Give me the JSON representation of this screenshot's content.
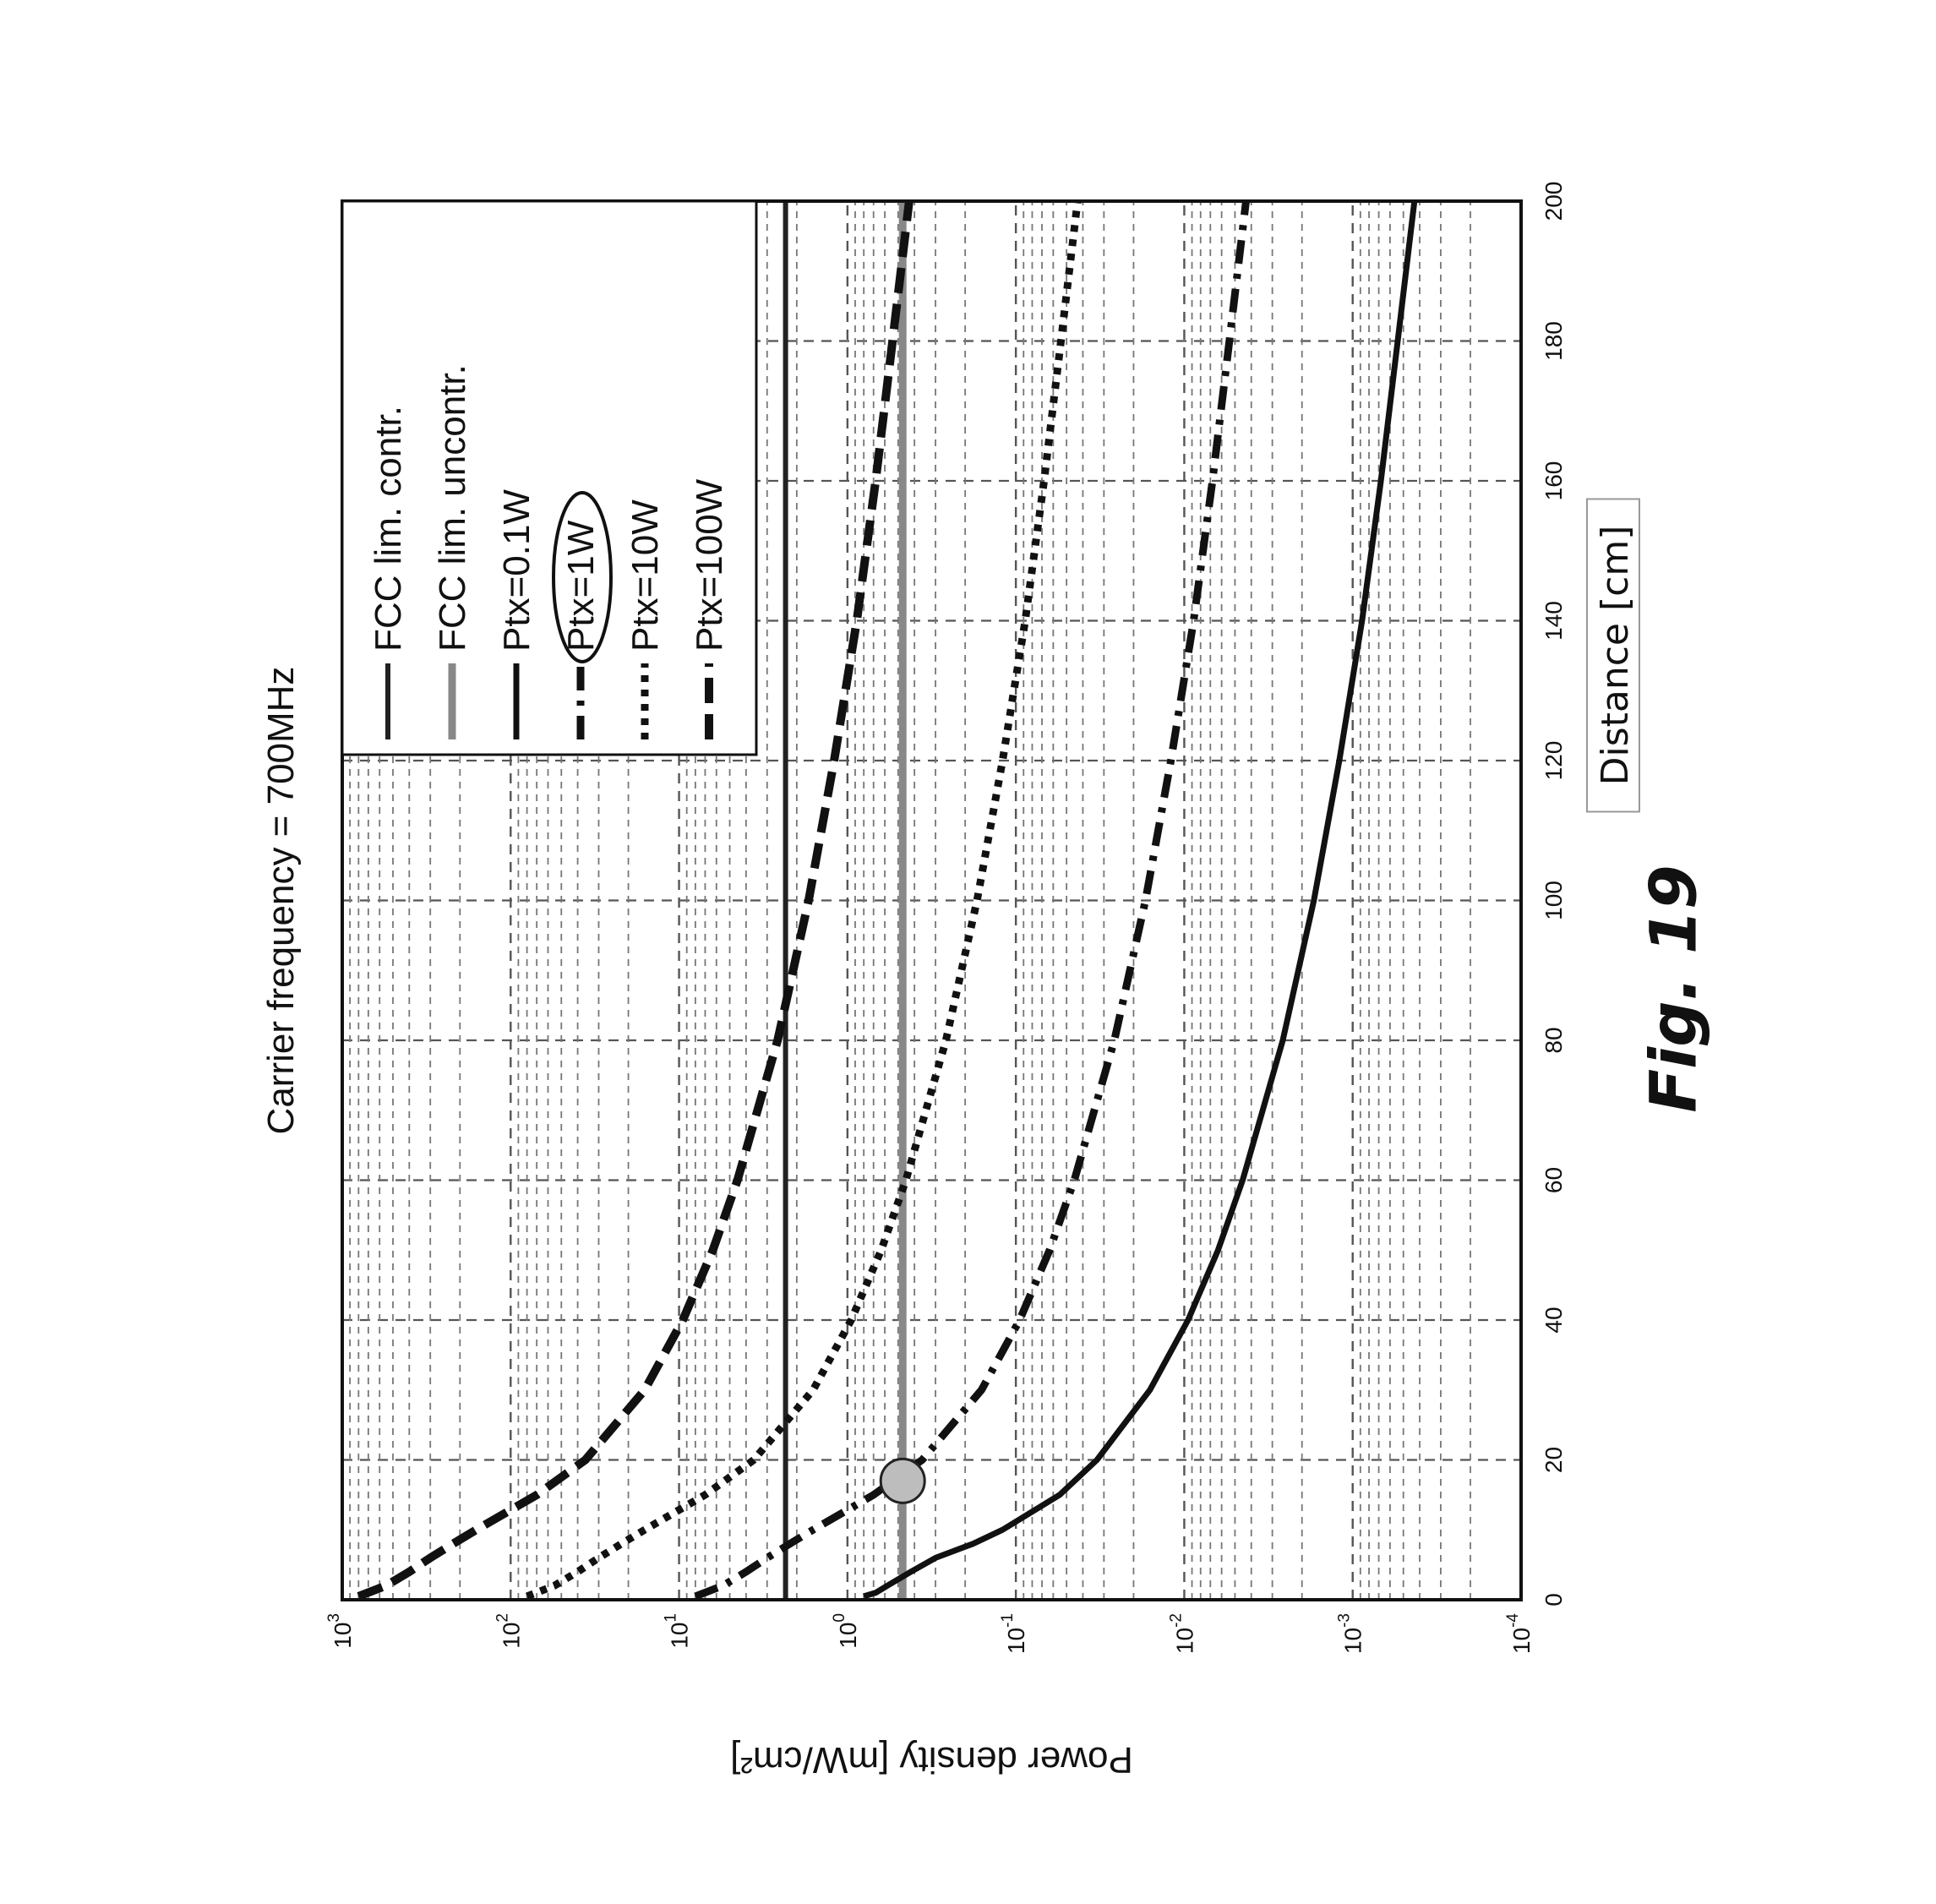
{
  "figure_label": "Fig. 19",
  "chart_data": {
    "type": "line",
    "title": "Carrier frequency = 700MHz",
    "xlabel": "Distance [cm]",
    "ylabel": "Power density [mW/cm²]",
    "x_scale": "linear",
    "y_scale": "log",
    "xlim": [
      0,
      200
    ],
    "ylim": [
      0.0001,
      1000
    ],
    "x_ticks": [
      0,
      20,
      40,
      60,
      80,
      100,
      120,
      140,
      160,
      180,
      200
    ],
    "y_tick_base": "10",
    "y_tick_exponents": [
      "3",
      "2",
      "1",
      "0",
      "-1",
      "-2",
      "-3",
      "-4"
    ],
    "grid": true,
    "legend_position": "top-right",
    "legend_highlighted_entry": "Ptx=1W",
    "series": [
      {
        "name": "FCC lim. contr.",
        "style": "solid",
        "color": "#222222",
        "x": [
          0,
          200
        ],
        "y": [
          2.33,
          2.33
        ]
      },
      {
        "name": "FCC lim. uncontr.",
        "style": "solid",
        "color": "#888888",
        "x": [
          0,
          200
        ],
        "y": [
          0.47,
          0.47
        ]
      },
      {
        "name": "Ptx=0.1W",
        "style": "solid",
        "color": "#111111",
        "x": [
          0.5,
          1,
          2,
          4,
          6,
          8,
          10,
          15,
          20,
          30,
          40,
          50,
          60,
          80,
          100,
          120,
          140,
          160,
          180,
          200
        ],
        "y": [
          0.8,
          0.68,
          0.58,
          0.42,
          0.3,
          0.18,
          0.12,
          0.055,
          0.033,
          0.016,
          0.0095,
          0.0063,
          0.0045,
          0.0026,
          0.0017,
          0.0012,
          0.00088,
          0.00068,
          0.00054,
          0.00043
        ]
      },
      {
        "name": "Ptx=1W",
        "style": "dashdot",
        "color": "#111111",
        "x": [
          0.5,
          2,
          4,
          6,
          8,
          10,
          15,
          20,
          30,
          40,
          50,
          60,
          80,
          100,
          120,
          140,
          160,
          180,
          200
        ],
        "y": [
          8,
          5.5,
          4,
          3,
          2.2,
          1.6,
          0.7,
          0.36,
          0.16,
          0.095,
          0.063,
          0.045,
          0.026,
          0.017,
          0.012,
          0.0088,
          0.0068,
          0.0054,
          0.0043
        ]
      },
      {
        "name": "Ptx=10W",
        "style": "dotted",
        "color": "#111111",
        "x": [
          0.5,
          2,
          4,
          6,
          8,
          10,
          15,
          20,
          30,
          40,
          50,
          60,
          80,
          100,
          120,
          140,
          160,
          180,
          200
        ],
        "y": [
          80,
          55,
          40,
          30,
          22,
          16,
          7,
          3.6,
          1.6,
          0.95,
          0.63,
          0.45,
          0.26,
          0.17,
          0.12,
          0.088,
          0.068,
          0.054,
          0.043
        ]
      },
      {
        "name": "Ptx=100W",
        "style": "dashed",
        "color": "#111111",
        "x": [
          0.5,
          2,
          4,
          6,
          8,
          10,
          15,
          20,
          30,
          40,
          50,
          60,
          80,
          100,
          120,
          140,
          160,
          180,
          200
        ],
        "y": [
          800,
          550,
          400,
          300,
          220,
          160,
          70,
          36,
          16,
          9.5,
          6.3,
          4.5,
          2.6,
          1.7,
          1.2,
          0.88,
          0.68,
          0.54,
          0.43
        ]
      }
    ],
    "annotations": [
      {
        "type": "marker",
        "shape": "circle",
        "color": "#bdbdbd",
        "x": 17,
        "y": 0.47
      }
    ]
  }
}
